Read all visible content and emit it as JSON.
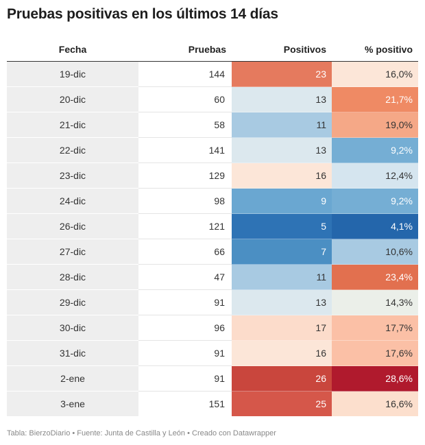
{
  "title": "Pruebas positivas en los últimos 14 días",
  "footer": "Tabla: BierzoDiario • Fuente: Junta de Castilla y León • Creado con Datawrapper",
  "chart_data": {
    "type": "table",
    "columns": [
      "Fecha",
      "Pruebas",
      "Positivos",
      "% positivo"
    ],
    "rows": [
      {
        "fecha": "19-dic",
        "pruebas": "144",
        "positivos": "23",
        "pct": "16,0%",
        "pos_color": "#e57a5e",
        "pos_text": "#ffffff",
        "pct_color": "#fce6d8",
        "pct_text": "#333333"
      },
      {
        "fecha": "20-dic",
        "pruebas": "60",
        "positivos": "13",
        "pct": "21,7%",
        "pos_color": "#dce8ee",
        "pos_text": "#333333",
        "pct_color": "#ef8a64",
        "pct_text": "#ffffff"
      },
      {
        "fecha": "21-dic",
        "pruebas": "58",
        "positivos": "11",
        "pct": "19,0%",
        "pos_color": "#a8cae2",
        "pos_text": "#333333",
        "pct_color": "#f5a887",
        "pct_text": "#333333"
      },
      {
        "fecha": "22-dic",
        "pruebas": "141",
        "positivos": "13",
        "pct": "9,2%",
        "pos_color": "#dce8ee",
        "pos_text": "#333333",
        "pct_color": "#75aed4",
        "pct_text": "#ffffff"
      },
      {
        "fecha": "23-dic",
        "pruebas": "129",
        "positivos": "16",
        "pct": "12,4%",
        "pos_color": "#fce6d8",
        "pos_text": "#333333",
        "pct_color": "#d5e5ef",
        "pct_text": "#333333"
      },
      {
        "fecha": "24-dic",
        "pruebas": "98",
        "positivos": "9",
        "pct": "9,2%",
        "pos_color": "#6aa7d1",
        "pos_text": "#ffffff",
        "pct_color": "#75aed4",
        "pct_text": "#ffffff"
      },
      {
        "fecha": "26-dic",
        "pruebas": "121",
        "positivos": "5",
        "pct": "4,1%",
        "pos_color": "#2e73b5",
        "pos_text": "#ffffff",
        "pct_color": "#2466ab",
        "pct_text": "#ffffff"
      },
      {
        "fecha": "27-dic",
        "pruebas": "66",
        "positivos": "7",
        "pct": "10,6%",
        "pos_color": "#4b8fc3",
        "pos_text": "#ffffff",
        "pct_color": "#a8cae2",
        "pct_text": "#333333"
      },
      {
        "fecha": "28-dic",
        "pruebas": "47",
        "positivos": "11",
        "pct": "23,4%",
        "pos_color": "#a8cae2",
        "pos_text": "#333333",
        "pct_color": "#e2704f",
        "pct_text": "#ffffff"
      },
      {
        "fecha": "29-dic",
        "pruebas": "91",
        "positivos": "13",
        "pct": "14,3%",
        "pos_color": "#dce8ee",
        "pos_text": "#333333",
        "pct_color": "#ebefe9",
        "pct_text": "#333333"
      },
      {
        "fecha": "30-dic",
        "pruebas": "96",
        "positivos": "17",
        "pct": "17,7%",
        "pos_color": "#fcdccb",
        "pos_text": "#333333",
        "pct_color": "#fbc0a6",
        "pct_text": "#333333"
      },
      {
        "fecha": "31-dic",
        "pruebas": "91",
        "positivos": "16",
        "pct": "17,6%",
        "pos_color": "#fce6d8",
        "pos_text": "#333333",
        "pct_color": "#fbc0a6",
        "pct_text": "#333333"
      },
      {
        "fecha": "2-ene",
        "pruebas": "91",
        "positivos": "26",
        "pct": "28,6%",
        "pos_color": "#c9463d",
        "pos_text": "#ffffff",
        "pct_color": "#b01a2d",
        "pct_text": "#ffffff"
      },
      {
        "fecha": "3-ene",
        "pruebas": "151",
        "positivos": "25",
        "pct": "16,6%",
        "pos_color": "#d5574a",
        "pos_text": "#ffffff",
        "pct_color": "#fcdfcd",
        "pct_text": "#333333"
      }
    ]
  }
}
